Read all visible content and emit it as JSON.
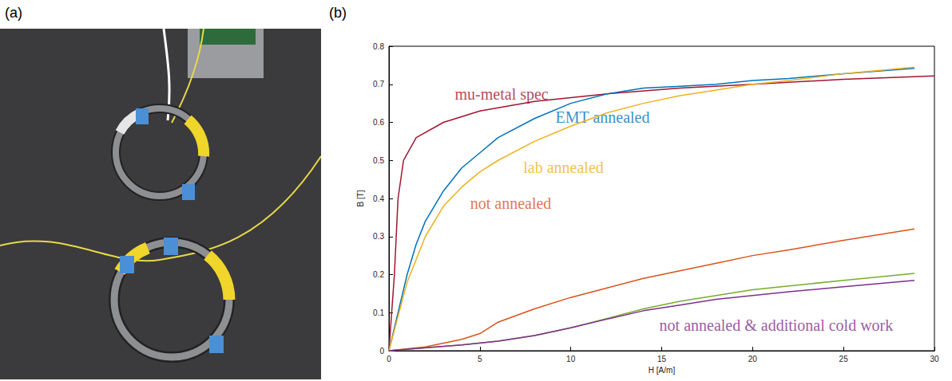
{
  "panel_labels": [
    "(a)",
    "(b)"
  ],
  "chart_data": {
    "type": "line",
    "x_label": "H [A/m]",
    "y_label": "B [T]",
    "xlim": [
      0,
      30
    ],
    "xticks": [
      0,
      5,
      10,
      15,
      20,
      25,
      30
    ],
    "ylim": [
      0,
      0.8
    ],
    "yticks": [
      0,
      0.1,
      0.2,
      0.3,
      0.4,
      0.5,
      0.6,
      0.7,
      0.8
    ],
    "grid": false,
    "series": [
      {
        "color": "#a2142f",
        "x": [
          0,
          0.3,
          0.5,
          0.8,
          1.5,
          3,
          5,
          8,
          12,
          16,
          20,
          25,
          30
        ],
        "values": [
          0,
          0.2,
          0.4,
          0.5,
          0.56,
          0.6,
          0.63,
          0.655,
          0.675,
          0.69,
          0.7,
          0.713,
          0.722
        ]
      },
      {
        "color": "#0072bd",
        "x": [
          0,
          0.5,
          1,
          1.5,
          2,
          3,
          4,
          5,
          6,
          8,
          10,
          12,
          14,
          16,
          18,
          20,
          22,
          25,
          28.9
        ],
        "values": [
          0,
          0.1,
          0.2,
          0.28,
          0.34,
          0.42,
          0.48,
          0.52,
          0.56,
          0.61,
          0.65,
          0.675,
          0.69,
          0.695,
          0.7,
          0.71,
          0.715,
          0.728,
          0.742
        ]
      },
      {
        "color": "#edb120",
        "x": [
          0,
          1,
          2,
          3,
          4,
          5,
          6,
          8,
          10,
          12,
          14,
          16,
          18,
          20,
          22,
          25,
          28.9
        ],
        "values": [
          0,
          0.18,
          0.3,
          0.38,
          0.43,
          0.47,
          0.5,
          0.55,
          0.59,
          0.625,
          0.65,
          0.67,
          0.685,
          0.7,
          0.71,
          0.728,
          0.745
        ]
      },
      {
        "color": "#d95319",
        "x": [
          0,
          2,
          4,
          5,
          6,
          8,
          10,
          12,
          14,
          16,
          18,
          20,
          22,
          25,
          28.9
        ],
        "values": [
          0,
          0.01,
          0.03,
          0.045,
          0.075,
          0.11,
          0.14,
          0.165,
          0.19,
          0.21,
          0.23,
          0.25,
          0.265,
          0.29,
          0.32
        ]
      },
      {
        "color": "#77ac30",
        "x": [
          0,
          4,
          6,
          8,
          10,
          12,
          14,
          16,
          18,
          20,
          22,
          25,
          28.9
        ],
        "values": [
          0,
          0.015,
          0.025,
          0.04,
          0.06,
          0.085,
          0.11,
          0.13,
          0.145,
          0.16,
          0.17,
          0.185,
          0.203
        ]
      },
      {
        "color": "#7e2f8e",
        "x": [
          0,
          4,
          6,
          8,
          10,
          12,
          14,
          16,
          18,
          20,
          22,
          25,
          28.9
        ],
        "values": [
          0,
          0.015,
          0.025,
          0.04,
          0.06,
          0.083,
          0.105,
          0.12,
          0.135,
          0.145,
          0.155,
          0.168,
          0.185
        ]
      }
    ],
    "annotations": [
      {
        "text": "mu-metal spec",
        "color": "#a2142f",
        "x": 6.2,
        "y": 0.674
      },
      {
        "text": "EMT annealed",
        "color": "#0072bd",
        "x": 11.75,
        "y": 0.613
      },
      {
        "text": "lab annealed",
        "color": "#edb120",
        "x": 9.6,
        "y": 0.482
      },
      {
        "text": "not annealed",
        "color": "#d95319",
        "x": 6.7,
        "y": 0.387
      },
      {
        "text": "not annealed & additional cold work",
        "color": "#7e2f8e",
        "x": 21.3,
        "y": 0.067
      }
    ]
  }
}
